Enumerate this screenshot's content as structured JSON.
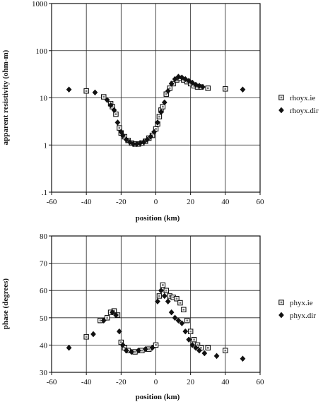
{
  "chart_data": [
    {
      "type": "scatter",
      "title": "",
      "xlabel": "position (km)",
      "ylabel": "apparent resistivity (ohm-m)",
      "xlim": [
        -60,
        60
      ],
      "ylim": [
        0.1,
        1000
      ],
      "yscale": "log",
      "grid": true,
      "legend_position": "right",
      "x_ticks": [
        "-60",
        "-40",
        "-20",
        "0",
        "20",
        "40",
        "60"
      ],
      "y_ticks": [
        ".1",
        "1",
        "10",
        "100",
        "1000"
      ],
      "series": [
        {
          "name": "rhoyx.ie",
          "marker": "square",
          "points": [
            [
              -40,
              14
            ],
            [
              -30,
              10.5
            ],
            [
              -26,
              7.5
            ],
            [
              -25,
              6.5
            ],
            [
              -23,
              4.5
            ],
            [
              -21,
              2.3
            ],
            [
              -20,
              1.8
            ],
            [
              -18,
              1.5
            ],
            [
              -16,
              1.25
            ],
            [
              -14,
              1.1
            ],
            [
              -12,
              1.05
            ],
            [
              -10,
              1.05
            ],
            [
              -8,
              1.1
            ],
            [
              -6,
              1.2
            ],
            [
              -4,
              1.4
            ],
            [
              -2,
              1.6
            ],
            [
              0,
              2.2
            ],
            [
              1,
              2.8
            ],
            [
              2,
              4
            ],
            [
              3,
              5.5
            ],
            [
              4,
              6.5
            ],
            [
              6,
              12
            ],
            [
              8,
              16
            ],
            [
              10,
              20
            ],
            [
              12,
              24
            ],
            [
              14,
              26
            ],
            [
              16,
              24
            ],
            [
              18,
              22
            ],
            [
              20,
              20
            ],
            [
              22,
              18
            ],
            [
              24,
              17
            ],
            [
              26,
              17
            ],
            [
              30,
              16
            ],
            [
              40,
              15.5
            ]
          ]
        },
        {
          "name": "rhoyx.dir",
          "marker": "diamond",
          "points": [
            [
              -50,
              15
            ],
            [
              -35,
              13
            ],
            [
              -28,
              9
            ],
            [
              -26,
              7
            ],
            [
              -24,
              5.5
            ],
            [
              -22,
              3
            ],
            [
              -20,
              1.9
            ],
            [
              -19,
              1.6
            ],
            [
              -17,
              1.3
            ],
            [
              -15,
              1.15
            ],
            [
              -13,
              1.05
            ],
            [
              -11,
              1.05
            ],
            [
              -9,
              1.1
            ],
            [
              -7,
              1.15
            ],
            [
              -5,
              1.3
            ],
            [
              -3,
              1.5
            ],
            [
              -1,
              1.9
            ],
            [
              1,
              3
            ],
            [
              3,
              5
            ],
            [
              5,
              8
            ],
            [
              7,
              14
            ],
            [
              9,
              20
            ],
            [
              11,
              25
            ],
            [
              13,
              28
            ],
            [
              15,
              27
            ],
            [
              17,
              25
            ],
            [
              19,
              23
            ],
            [
              21,
              21
            ],
            [
              23,
              19
            ],
            [
              25,
              18
            ],
            [
              27,
              17
            ],
            [
              50,
              15
            ]
          ]
        }
      ]
    },
    {
      "type": "scatter",
      "title": "",
      "xlabel": "position (km)",
      "ylabel": "phase (degrees)",
      "xlim": [
        -60,
        60
      ],
      "ylim": [
        30,
        80
      ],
      "grid": true,
      "legend_position": "right",
      "x_ticks": [
        "-60",
        "-40",
        "-20",
        "0",
        "20",
        "40",
        "60"
      ],
      "y_ticks": [
        "30",
        "40",
        "50",
        "60",
        "70",
        "80"
      ],
      "series": [
        {
          "name": "phyx.ie",
          "marker": "square",
          "points": [
            [
              -40,
              43
            ],
            [
              -32,
              49
            ],
            [
              -28,
              50
            ],
            [
              -26,
              52
            ],
            [
              -24,
              52.5
            ],
            [
              -22,
              51
            ],
            [
              -20,
              41
            ],
            [
              -18,
              39
            ],
            [
              -16,
              38
            ],
            [
              -12,
              37.5
            ],
            [
              -8,
              38
            ],
            [
              -4,
              38.5
            ],
            [
              0,
              40
            ],
            [
              2,
              58
            ],
            [
              4,
              62
            ],
            [
              6,
              60
            ],
            [
              8,
              58
            ],
            [
              10,
              57.5
            ],
            [
              12,
              57
            ],
            [
              14,
              55.5
            ],
            [
              16,
              53
            ],
            [
              18,
              49
            ],
            [
              20,
              45
            ],
            [
              22,
              42
            ],
            [
              24,
              40
            ],
            [
              26,
              39
            ],
            [
              30,
              39
            ],
            [
              40,
              38
            ]
          ]
        },
        {
          "name": "phyx.dir",
          "marker": "diamond",
          "points": [
            [
              -50,
              39
            ],
            [
              -36,
              44
            ],
            [
              -30,
              49
            ],
            [
              -25,
              52
            ],
            [
              -23,
              51
            ],
            [
              -21,
              45
            ],
            [
              -19,
              40
            ],
            [
              -17,
              38
            ],
            [
              -14,
              37.5
            ],
            [
              -10,
              38
            ],
            [
              -6,
              38.5
            ],
            [
              -2,
              39
            ],
            [
              1,
              56
            ],
            [
              3,
              60
            ],
            [
              5,
              58
            ],
            [
              7,
              56
            ],
            [
              9,
              52
            ],
            [
              11,
              50
            ],
            [
              13,
              49
            ],
            [
              15,
              48
            ],
            [
              17,
              45
            ],
            [
              19,
              42
            ],
            [
              21,
              40
            ],
            [
              23,
              39
            ],
            [
              25,
              38
            ],
            [
              28,
              37
            ],
            [
              35,
              36
            ],
            [
              50,
              35
            ]
          ]
        }
      ]
    }
  ]
}
